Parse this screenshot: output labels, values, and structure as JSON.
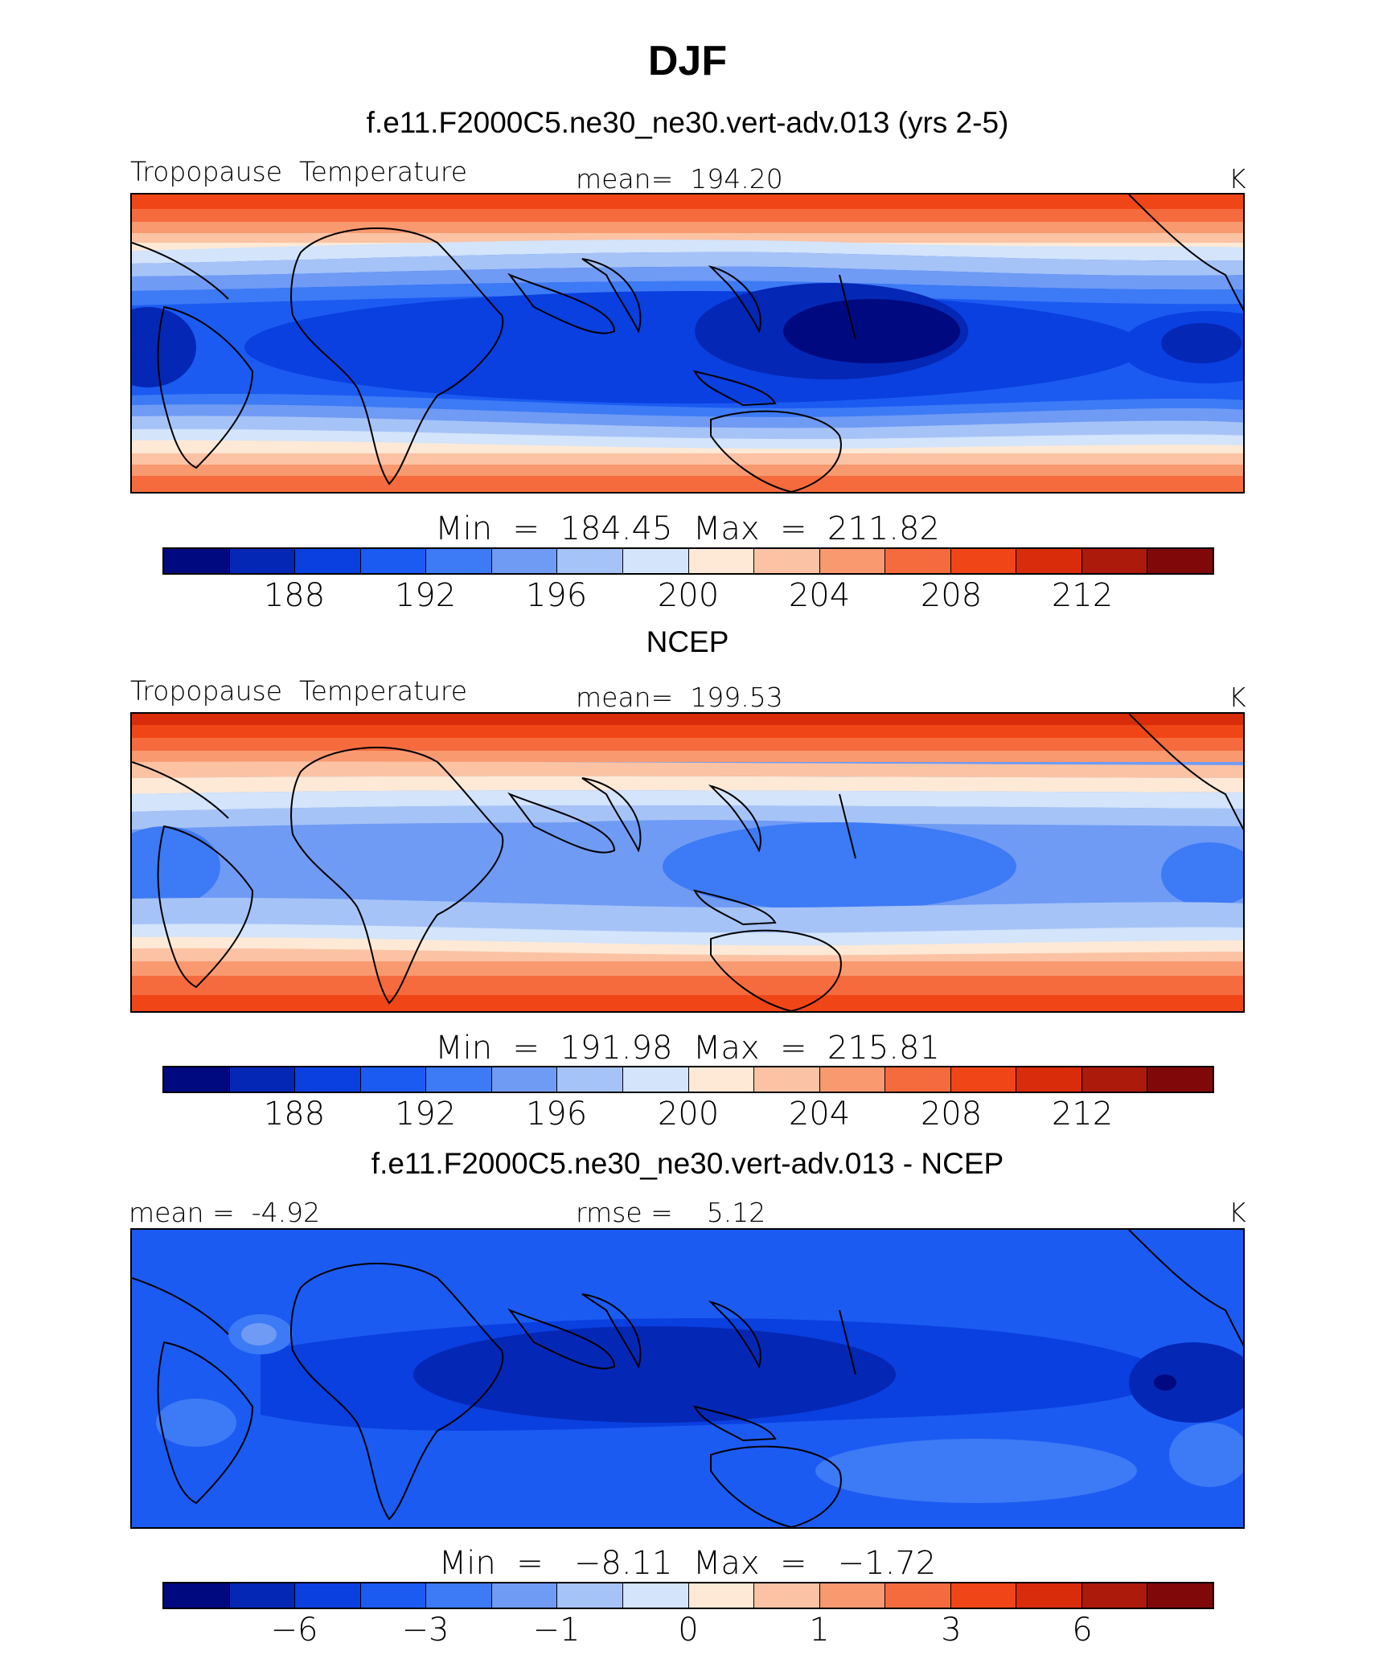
{
  "figure": {
    "title": "DJF",
    "units": "K"
  },
  "colorbar": {
    "colors": [
      "#00097f",
      "#0427b5",
      "#0a3fe0",
      "#1b5bf2",
      "#3d7af5",
      "#6f9bf5",
      "#a6c3f7",
      "#d3e4fb",
      "#fde9d6",
      "#fbc3a4",
      "#f9996f",
      "#f56b3e",
      "#f04516",
      "#d82c0a",
      "#ab1a0a",
      "#800808"
    ]
  },
  "chart_data": [
    {
      "type": "heatmap",
      "title": "f.e11.F2000C5.ne30_ne30.vert-adv.013 (yrs 2-5)",
      "left_label": "Tropopause  Temperature",
      "center_label": "mean=  194.20",
      "right_label": "K",
      "min_max": "Min  =  184.45  Max  =  211.82",
      "colorbar_ticks": [
        "188",
        "192",
        "196",
        "200",
        "204",
        "208",
        "212"
      ]
    },
    {
      "type": "heatmap",
      "title": "NCEP",
      "left_label": "Tropopause  Temperature",
      "center_label": "mean=  199.53",
      "right_label": "K",
      "min_max": "Min  =  191.98  Max  =  215.81",
      "colorbar_ticks": [
        "188",
        "192",
        "196",
        "200",
        "204",
        "208",
        "212"
      ]
    },
    {
      "type": "heatmap",
      "title": "f.e11.F2000C5.ne30_ne30.vert-adv.013 - NCEP",
      "left_label": "mean =  -4.92",
      "center_label": "rmse =    5.12",
      "right_label": "K",
      "min_max": "Min  =   −8.11  Max  =   −1.72",
      "colorbar_ticks": [
        "−6",
        "−3",
        "−1",
        "0",
        "1",
        "3",
        "6"
      ]
    }
  ]
}
